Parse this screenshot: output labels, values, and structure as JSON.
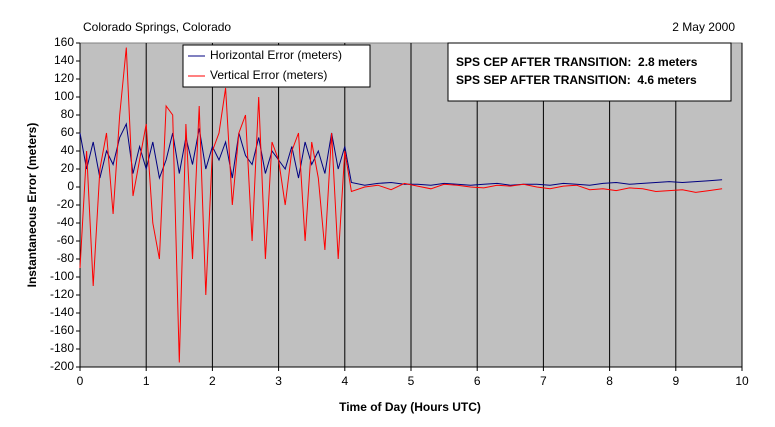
{
  "chart_data": {
    "type": "line",
    "title": "Colorado Springs, Colorado",
    "date": "2 May 2000",
    "annotations": [
      "SPS CEP AFTER TRANSITION:  2.8 meters",
      "SPS SEP AFTER TRANSITION:  4.6 meters"
    ],
    "xlabel": "Time of Day (Hours UTC)",
    "ylabel": "Instantaneous Error (meters)",
    "xlim": [
      0,
      10
    ],
    "ylim": [
      -200,
      160
    ],
    "xticks": [
      0,
      1,
      2,
      3,
      4,
      5,
      6,
      7,
      8,
      9,
      10
    ],
    "yticks": [
      -200,
      -180,
      -160,
      -140,
      -120,
      -100,
      -80,
      -60,
      -40,
      -20,
      0,
      20,
      40,
      60,
      80,
      100,
      120,
      140,
      160
    ],
    "grid": true,
    "legend": "upper center",
    "background": "#c0c0c0",
    "x": [
      0,
      0.1,
      0.2,
      0.3,
      0.4,
      0.5,
      0.6,
      0.7,
      0.8,
      0.9,
      1,
      1.1,
      1.2,
      1.3,
      1.4,
      1.5,
      1.6,
      1.7,
      1.8,
      1.9,
      2,
      2.1,
      2.2,
      2.3,
      2.4,
      2.5,
      2.6,
      2.7,
      2.8,
      2.9,
      3,
      3.1,
      3.2,
      3.3,
      3.4,
      3.5,
      3.6,
      3.7,
      3.8,
      3.9,
      4,
      4.1,
      4.3,
      4.5,
      4.7,
      4.9,
      5.1,
      5.3,
      5.5,
      5.7,
      5.9,
      6.1,
      6.3,
      6.5,
      6.7,
      6.9,
      7.1,
      7.3,
      7.5,
      7.7,
      7.9,
      8.1,
      8.3,
      8.5,
      8.7,
      8.9,
      9.1,
      9.3,
      9.5,
      9.7
    ],
    "series": [
      {
        "name": "Horizontal Error (meters)",
        "color": "#000080",
        "values": [
          60,
          20,
          50,
          10,
          40,
          25,
          55,
          70,
          15,
          45,
          20,
          50,
          10,
          30,
          60,
          15,
          55,
          25,
          65,
          20,
          45,
          30,
          50,
          10,
          60,
          35,
          25,
          55,
          15,
          40,
          30,
          20,
          45,
          10,
          50,
          25,
          40,
          15,
          60,
          20,
          45,
          5,
          2,
          4,
          5,
          3,
          3,
          2,
          4,
          3,
          2,
          3,
          4,
          2,
          3,
          3,
          2,
          4,
          3,
          2,
          4,
          5,
          3,
          4,
          5,
          6,
          5,
          6,
          7,
          8
        ]
      },
      {
        "name": "Vertical Error (meters)",
        "color": "#ff0000",
        "values": [
          -90,
          40,
          -110,
          20,
          60,
          -30,
          80,
          155,
          -10,
          30,
          70,
          -40,
          -80,
          90,
          80,
          -195,
          70,
          -80,
          90,
          -120,
          40,
          60,
          110,
          -20,
          60,
          80,
          -60,
          100,
          -80,
          50,
          30,
          -20,
          40,
          60,
          -60,
          50,
          10,
          -70,
          60,
          -80,
          40,
          -5,
          0,
          2,
          -3,
          4,
          1,
          -2,
          3,
          2,
          0,
          -1,
          2,
          1,
          3,
          0,
          -2,
          1,
          2,
          -3,
          -2,
          -4,
          -1,
          -2,
          -5,
          -4,
          -3,
          -6,
          -4,
          -2
        ]
      }
    ]
  }
}
